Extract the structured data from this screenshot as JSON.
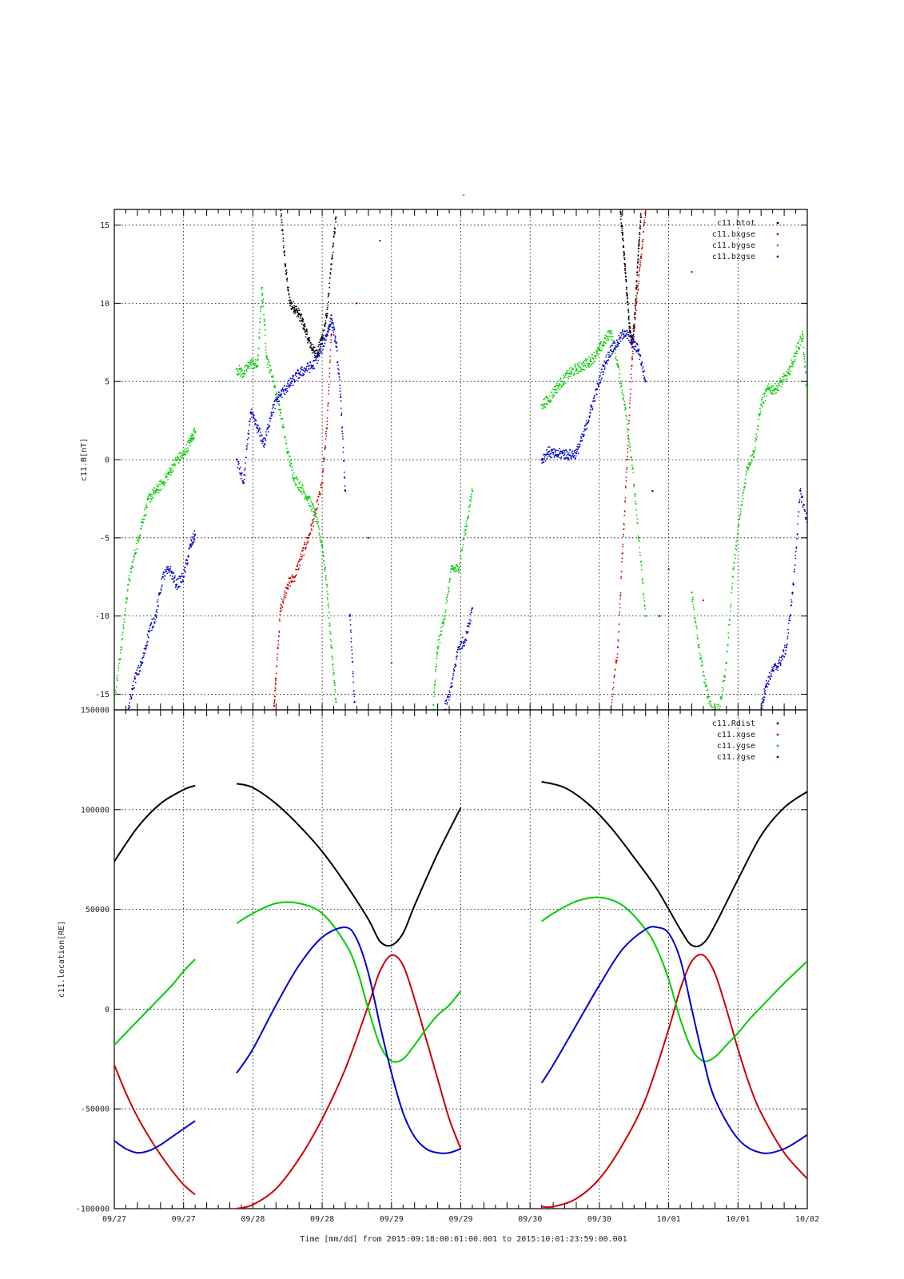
{
  "colors": {
    "black": "#000000",
    "red": "#cc0000",
    "green": "#00cc00",
    "blue": "#0000cc"
  },
  "figure": {
    "top_title": "-",
    "xlabel": "Time [mm/dd]  from 2015:09:18:00:01:00.001  to  2015:10:01:23:59:00.001",
    "x_tick_labels": [
      "09/27",
      "09/27",
      "09/28",
      "09/28",
      "09/29",
      "09/29",
      "09/30",
      "09/30",
      "10/01",
      "10/01",
      "10/02"
    ]
  },
  "chart_data": [
    {
      "type": "scatter",
      "ylabel": "c11.B[nT]",
      "ylim": [
        -16,
        16
      ],
      "xlim": [
        0,
        30
      ],
      "yticks": [
        -15,
        -10,
        -5,
        0,
        5,
        10,
        15
      ],
      "ytick_labels": [
        "-15",
        "-10",
        "-5",
        "0",
        "5",
        "10",
        "15"
      ],
      "grid": true,
      "legend_position": "top-right",
      "series": [
        {
          "name": "c11.btot",
          "color": "black",
          "x": [
            7.2,
            7.4,
            7.6,
            7.8,
            8.0,
            8.2,
            8.4,
            8.6,
            8.8,
            9.0,
            9.2,
            9.4,
            9.6,
            21.9,
            22.0,
            22.1,
            22.2,
            22.3,
            22.4,
            22.5,
            22.6,
            22.7,
            22.8
          ],
          "y": [
            16.0,
            12.5,
            10.0,
            9.7,
            9.3,
            8.6,
            7.7,
            7.0,
            6.8,
            7.8,
            9.2,
            12.5,
            15.5,
            16.0,
            14.5,
            12.5,
            10.5,
            8.5,
            7.5,
            8.5,
            11.0,
            13.5,
            15.5
          ]
        },
        {
          "name": "c11.bxgse",
          "color": "red",
          "x": [
            6.9,
            7.0,
            7.2,
            7.5,
            7.8,
            8.1,
            8.4,
            8.7,
            9.0,
            9.2,
            9.4,
            9.6,
            10.5,
            11.0,
            11.5,
            12.0,
            21.5,
            21.8,
            22.0,
            22.2,
            22.4,
            22.6,
            22.8,
            23.0,
            24.0,
            25.0,
            25.5,
            26.0
          ],
          "y": [
            -16.0,
            -14.0,
            -9.5,
            -8.0,
            -7.5,
            -6.2,
            -5.0,
            -3.5,
            -1.5,
            2.0,
            8.0,
            15.5,
            10.0,
            -5.0,
            14.0,
            -13.0,
            -16.0,
            -12.0,
            -6.0,
            0.0,
            6.0,
            10.0,
            13.0,
            16.0,
            -7.0,
            12.0,
            -9.0,
            -16.0
          ]
        },
        {
          "name": "c11.bygse",
          "color": "green",
          "x": [
            0.0,
            0.3,
            0.6,
            0.9,
            1.2,
            1.5,
            1.8,
            2.1,
            2.4,
            2.7,
            3.0,
            3.3,
            3.5,
            5.3,
            5.6,
            5.9,
            6.2,
            6.4,
            6.6,
            6.9,
            7.2,
            7.5,
            7.8,
            8.1,
            8.4,
            8.7,
            9.0,
            9.2,
            9.4,
            9.6,
            13.8,
            14.0,
            14.3,
            14.6,
            14.9,
            15.2,
            15.5,
            18.5,
            18.8,
            19.1,
            19.4,
            19.7,
            20.0,
            20.3,
            20.6,
            20.9,
            21.2,
            21.5,
            21.8,
            22.1,
            22.4,
            22.7,
            23.0,
            25.0,
            25.3,
            25.6,
            25.9,
            26.2,
            26.5,
            26.8,
            27.1,
            27.4,
            27.7,
            28.0,
            28.3,
            28.6,
            28.9,
            29.2,
            29.5,
            29.8,
            30.0
          ],
          "y": [
            -15.5,
            -12.0,
            -8.0,
            -6.0,
            -4.0,
            -2.5,
            -2.0,
            -1.5,
            -0.8,
            0.0,
            0.3,
            1.2,
            1.8,
            5.8,
            5.5,
            6.2,
            6.0,
            11.0,
            6.5,
            5.0,
            3.0,
            0.5,
            -1.2,
            -1.8,
            -2.5,
            -3.5,
            -5.5,
            -8.0,
            -12.0,
            -15.5,
            -16.0,
            -12.0,
            -10.0,
            -7.0,
            -7.0,
            -4.5,
            -2.0,
            3.5,
            3.8,
            4.5,
            5.0,
            5.5,
            5.8,
            6.0,
            6.3,
            6.8,
            7.5,
            8.2,
            6.0,
            3.5,
            0.0,
            -5.0,
            -10.0,
            -8.5,
            -12.0,
            -14.5,
            -16.0,
            -16.0,
            -13.0,
            -7.0,
            -3.5,
            -0.5,
            0.5,
            3.5,
            4.5,
            4.5,
            5.0,
            5.5,
            6.8,
            8.0,
            4.0
          ]
        },
        {
          "name": "c11.bzgse",
          "color": "blue",
          "x": [
            0.6,
            0.9,
            1.2,
            1.5,
            1.8,
            2.1,
            2.4,
            2.7,
            3.0,
            3.3,
            3.5,
            5.3,
            5.6,
            5.9,
            6.2,
            6.5,
            6.8,
            7.1,
            7.4,
            7.7,
            8.0,
            8.3,
            8.6,
            8.9,
            9.2,
            9.4,
            9.6,
            9.8,
            10.0,
            10.2,
            10.4,
            14.3,
            14.6,
            14.9,
            15.2,
            15.5,
            18.5,
            18.8,
            19.1,
            19.4,
            19.7,
            20.0,
            20.3,
            20.6,
            20.9,
            21.2,
            21.5,
            21.8,
            22.1,
            22.4,
            22.7,
            23.0,
            23.3,
            23.6,
            28.0,
            28.2,
            28.5,
            28.8,
            29.1,
            29.4,
            29.7,
            30.0
          ],
          "y": [
            -16.0,
            -14.0,
            -13.0,
            -11.0,
            -10.0,
            -7.5,
            -7.0,
            -8.0,
            -7.5,
            -5.5,
            -4.8,
            0.0,
            -1.5,
            3.0,
            2.0,
            1.0,
            3.0,
            4.0,
            4.5,
            5.0,
            5.5,
            5.8,
            6.0,
            6.8,
            8.0,
            9.0,
            7.5,
            4.0,
            -2.0,
            -10.0,
            -15.5,
            -16.0,
            -14.5,
            -12.0,
            -11.5,
            -9.5,
            0.0,
            0.5,
            0.3,
            0.4,
            0.3,
            0.4,
            1.5,
            3.0,
            4.5,
            6.0,
            7.0,
            7.5,
            8.2,
            7.5,
            7.0,
            5.0,
            -2.0,
            -10.0,
            -16.0,
            -14.5,
            -13.5,
            -13.0,
            -12.0,
            -8.0,
            -2.0,
            -4.0
          ]
        }
      ]
    },
    {
      "type": "line",
      "ylabel": "c11.location[RE]",
      "ylim": [
        -100000,
        150000
      ],
      "xlim": [
        0,
        30
      ],
      "yticks": [
        -100000,
        -50000,
        0,
        50000,
        100000,
        150000
      ],
      "ytick_labels": [
        "-100000",
        "-50000",
        "0",
        "50000",
        "100000",
        "150000"
      ],
      "grid": true,
      "legend_position": "top-right",
      "series": [
        {
          "name": "c11.Rdist",
          "color": "black",
          "segments": [
            {
              "x": [
                0.0,
                1.0,
                2.0,
                3.0,
                3.5
              ],
              "y": [
                74000,
                91000,
                103000,
                110000,
                112000
              ]
            },
            {
              "x": [
                5.3,
                6.0,
                7.0,
                8.0,
                9.0,
                10.0,
                11.0,
                11.5,
                12.0,
                12.5,
                13.0,
                14.0,
                15.0
              ],
              "y": [
                113000,
                111000,
                103000,
                92000,
                79000,
                63000,
                45000,
                34000,
                32000,
                38000,
                52000,
                78000,
                101000
              ]
            },
            {
              "x": [
                18.5,
                19.5,
                20.5,
                21.5,
                22.5,
                23.5,
                24.5,
                25.0,
                25.5,
                26.0,
                27.0,
                28.0,
                29.0,
                30.0
              ],
              "y": [
                114000,
                111000,
                103000,
                91000,
                76000,
                60000,
                40000,
                32000,
                33000,
                42000,
                65000,
                87000,
                101000,
                109000
              ]
            }
          ]
        },
        {
          "name": "c11.xgse",
          "color": "red",
          "segments": [
            {
              "x": [
                0.0,
                0.5,
                1.0,
                1.5,
                2.0,
                2.5,
                3.0,
                3.5
              ],
              "y": [
                -28000,
                -42000,
                -54000,
                -64000,
                -73000,
                -81000,
                -88000,
                -93000
              ]
            },
            {
              "x": [
                5.3,
                6.0,
                7.0,
                8.0,
                9.0,
                10.0,
                11.0,
                11.5,
                12.0,
                12.5,
                13.0,
                13.5,
                14.0,
                14.5,
                15.0
              ],
              "y": [
                -100000,
                -98000,
                -90000,
                -75000,
                -55000,
                -30000,
                2000,
                19000,
                27000,
                22000,
                5000,
                -15000,
                -35000,
                -55000,
                -70000
              ]
            },
            {
              "x": [
                18.5,
                19.0,
                20.0,
                21.0,
                22.0,
                23.0,
                24.0,
                24.5,
                25.0,
                25.5,
                26.0,
                26.5,
                27.0,
                27.5,
                28.0,
                29.0,
                30.0
              ],
              "y": [
                -99000,
                -99000,
                -95000,
                -85000,
                -68000,
                -45000,
                -10000,
                10000,
                24000,
                27000,
                18000,
                0,
                -20000,
                -38000,
                -52000,
                -72000,
                -85000
              ]
            }
          ]
        },
        {
          "name": "c11.ygse",
          "color": "green",
          "segments": [
            {
              "x": [
                0.0,
                0.5,
                1.0,
                1.5,
                2.0,
                2.5,
                3.0,
                3.5
              ],
              "y": [
                -18000,
                -12000,
                -6000,
                0,
                6000,
                12000,
                19000,
                25000
              ]
            },
            {
              "x": [
                5.3,
                6.0,
                7.0,
                8.0,
                9.0,
                10.0,
                10.5,
                11.0,
                11.5,
                12.0,
                12.5,
                13.0,
                13.5,
                14.0,
                14.5,
                15.0
              ],
              "y": [
                43000,
                48000,
                53000,
                53000,
                48000,
                33000,
                20000,
                0,
                -18000,
                -26000,
                -25000,
                -18000,
                -10000,
                -3000,
                2000,
                9000
              ]
            },
            {
              "x": [
                18.5,
                19.0,
                20.0,
                21.0,
                22.0,
                23.0,
                23.5,
                24.0,
                24.5,
                25.0,
                25.5,
                26.0,
                26.5,
                27.0,
                27.5,
                28.0,
                29.0,
                30.0
              ],
              "y": [
                44000,
                48000,
                54000,
                56000,
                52000,
                40000,
                30000,
                15000,
                -5000,
                -20000,
                -26000,
                -24000,
                -18000,
                -12000,
                -5000,
                1000,
                13000,
                24000
              ]
            }
          ]
        },
        {
          "name": "c11.zgse",
          "color": "blue",
          "segments": [
            {
              "x": [
                0.0,
                0.5,
                1.0,
                1.5,
                2.0,
                2.5,
                3.0,
                3.5
              ],
              "y": [
                -66000,
                -70000,
                -72000,
                -71000,
                -68000,
                -64000,
                -60000,
                -56000
              ]
            },
            {
              "x": [
                5.3,
                6.0,
                7.0,
                8.0,
                9.0,
                10.0,
                10.5,
                11.0,
                11.5,
                12.0,
                12.5,
                13.0,
                13.5,
                14.0,
                14.5,
                15.0
              ],
              "y": [
                -32000,
                -20000,
                2000,
                22000,
                36000,
                41000,
                35000,
                18000,
                -8000,
                -32000,
                -52000,
                -64000,
                -70000,
                -72000,
                -72000,
                -70000
              ]
            },
            {
              "x": [
                18.5,
                19.0,
                20.0,
                21.0,
                22.0,
                23.0,
                23.5,
                24.0,
                24.5,
                25.0,
                25.5,
                26.0,
                27.0,
                28.0,
                29.0,
                30.0
              ],
              "y": [
                -37000,
                -28000,
                -8000,
                12000,
                30000,
                40000,
                41000,
                38000,
                25000,
                0,
                -25000,
                -45000,
                -65000,
                -72000,
                -70000,
                -63000
              ]
            }
          ]
        }
      ]
    }
  ]
}
